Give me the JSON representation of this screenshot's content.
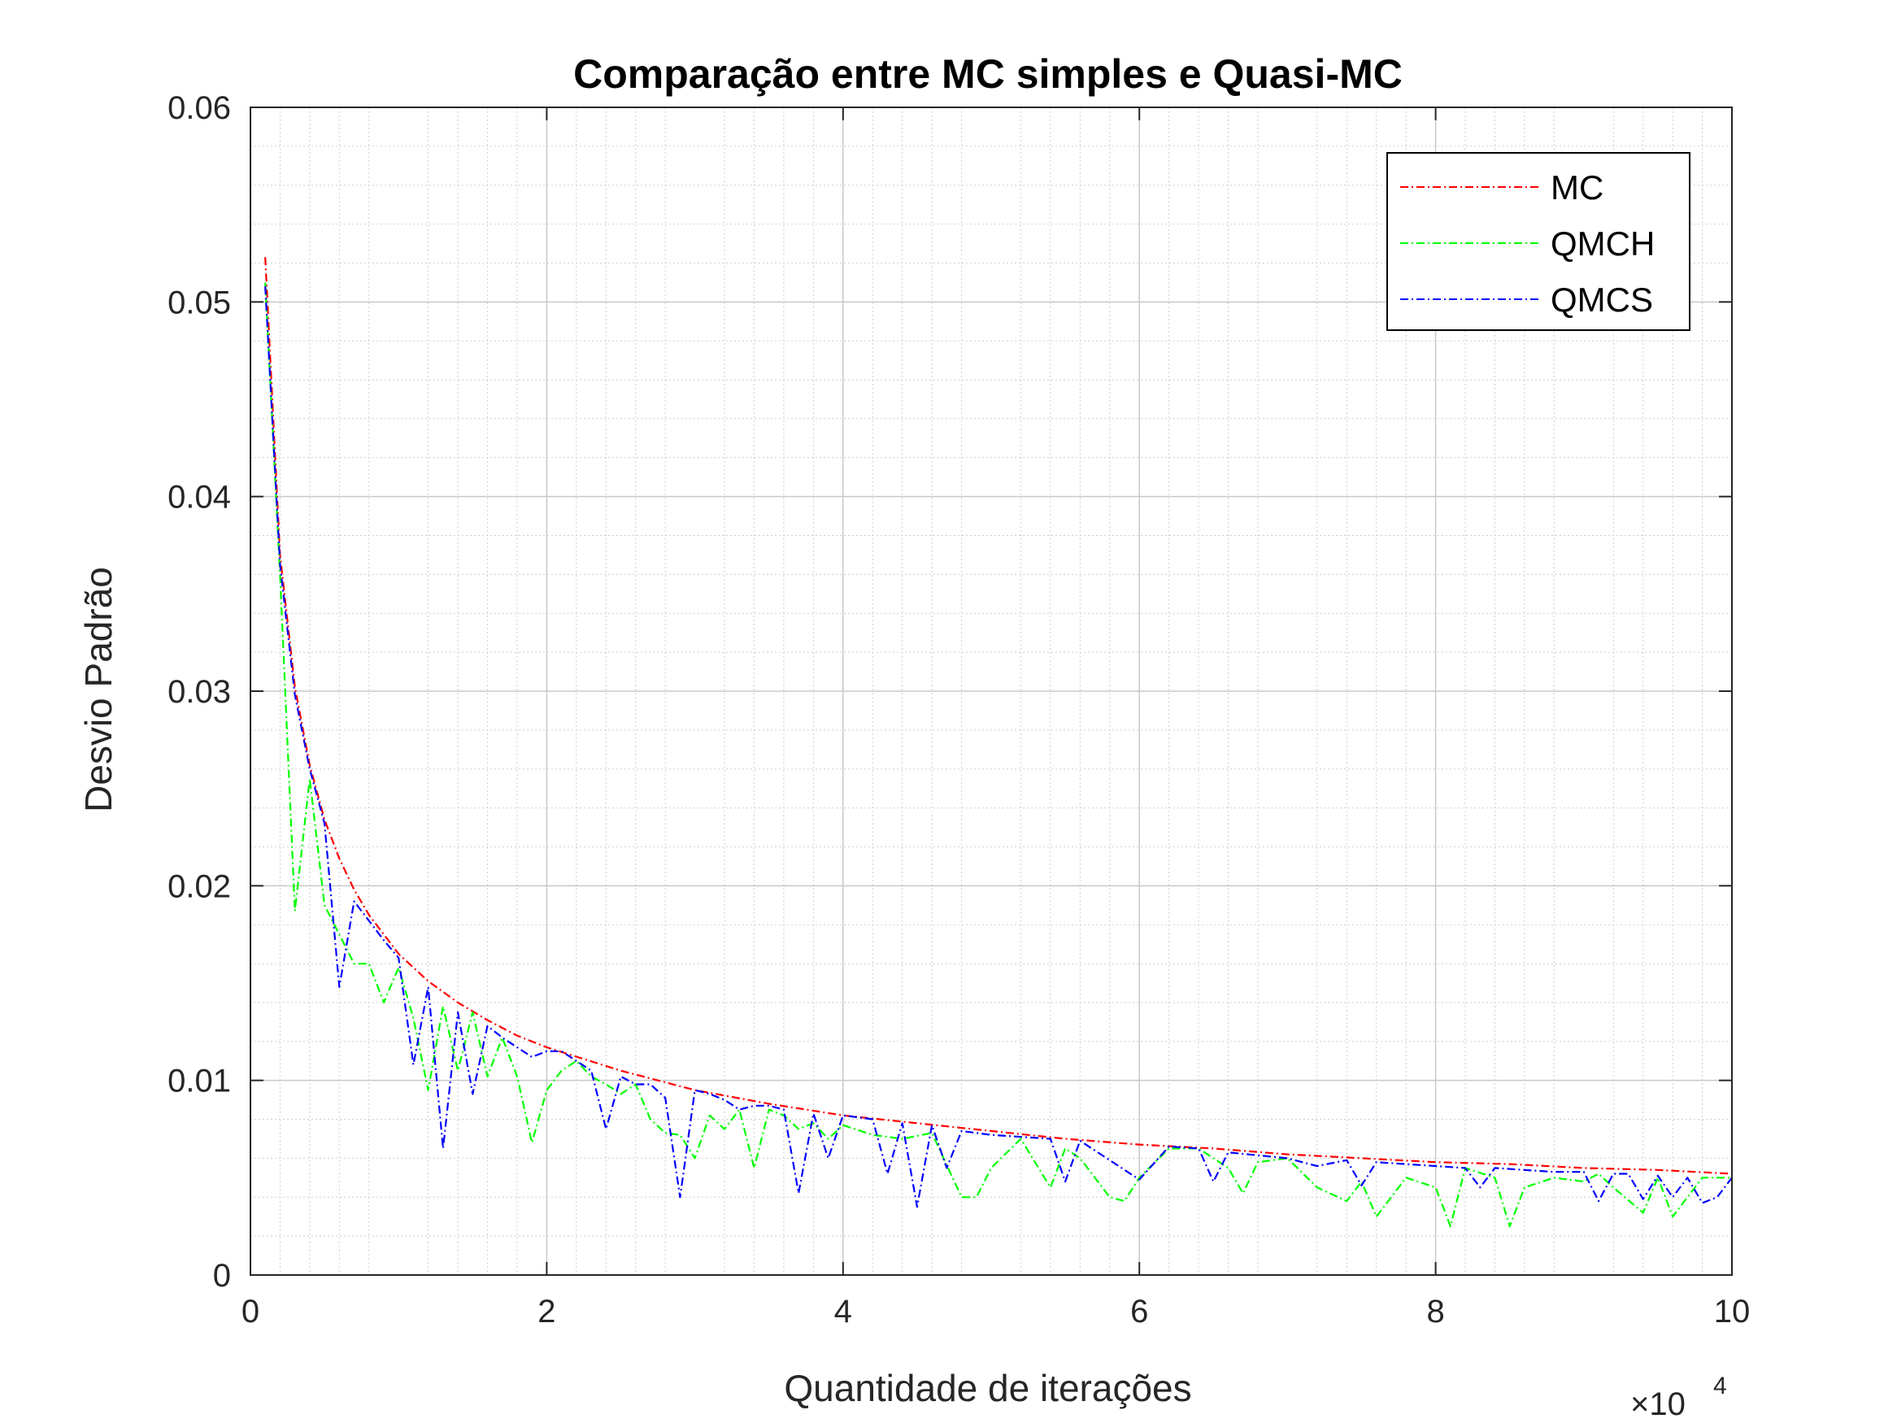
{
  "chart_data": {
    "type": "line",
    "title": "Comparação entre MC simples e Quasi-MC",
    "xlabel": "Quantidade de iterações",
    "ylabel": "Desvio Padrão",
    "x_exponent_label": "×10",
    "x_exponent_power": "4",
    "xlim": [
      0,
      10
    ],
    "ylim": [
      0,
      0.06
    ],
    "xticks": [
      "0",
      "2",
      "4",
      "6",
      "8",
      "10"
    ],
    "yticks": [
      "0",
      "0.01",
      "0.02",
      "0.03",
      "0.04",
      "0.05",
      "0.06"
    ],
    "grid": true,
    "minor_grid": true,
    "legend_position": "top-right",
    "series": [
      {
        "name": "MC",
        "color": "#ff0000",
        "x": [
          0.1,
          0.2,
          0.3,
          0.4,
          0.5,
          0.6,
          0.7,
          0.8,
          1.0,
          1.2,
          1.4,
          1.6,
          1.8,
          2.0,
          2.5,
          3.0,
          3.5,
          4.0,
          4.5,
          5.0,
          5.5,
          6.0,
          6.5,
          7.0,
          7.5,
          8.0,
          8.5,
          9.0,
          9.5,
          10.0
        ],
        "y": [
          0.0523,
          0.037,
          0.0302,
          0.0262,
          0.0234,
          0.0214,
          0.0198,
          0.0185,
          0.0165,
          0.0151,
          0.014,
          0.0131,
          0.0123,
          0.0117,
          0.0105,
          0.0095,
          0.0088,
          0.0082,
          0.0078,
          0.0074,
          0.007,
          0.0067,
          0.0065,
          0.0062,
          0.006,
          0.0058,
          0.0057,
          0.0055,
          0.0054,
          0.0052
        ]
      },
      {
        "name": "QMCH",
        "color": "#00ff00",
        "x": [
          0.1,
          0.2,
          0.3,
          0.4,
          0.5,
          0.6,
          0.7,
          0.8,
          0.9,
          1.0,
          1.1,
          1.2,
          1.3,
          1.4,
          1.5,
          1.6,
          1.7,
          1.8,
          1.9,
          2.0,
          2.1,
          2.2,
          2.3,
          2.4,
          2.5,
          2.6,
          2.7,
          2.8,
          2.9,
          3.0,
          3.1,
          3.2,
          3.3,
          3.4,
          3.5,
          3.6,
          3.7,
          3.8,
          3.9,
          4.0,
          4.2,
          4.4,
          4.6,
          4.8,
          4.9,
          5.0,
          5.2,
          5.4,
          5.5,
          5.6,
          5.8,
          5.9,
          6.0,
          6.2,
          6.4,
          6.6,
          6.7,
          6.8,
          7.0,
          7.2,
          7.4,
          7.5,
          7.6,
          7.8,
          8.0,
          8.1,
          8.2,
          8.4,
          8.5,
          8.6,
          8.8,
          9.0,
          9.1,
          9.2,
          9.4,
          9.5,
          9.6,
          9.8,
          10.0
        ],
        "y": [
          0.051,
          0.036,
          0.0187,
          0.0255,
          0.019,
          0.0175,
          0.016,
          0.016,
          0.014,
          0.0158,
          0.0132,
          0.0095,
          0.0138,
          0.0105,
          0.0135,
          0.0102,
          0.0122,
          0.0102,
          0.0068,
          0.0095,
          0.0105,
          0.011,
          0.0102,
          0.0098,
          0.0093,
          0.0098,
          0.008,
          0.0073,
          0.0072,
          0.006,
          0.0082,
          0.0075,
          0.0085,
          0.0055,
          0.0085,
          0.0082,
          0.0075,
          0.0078,
          0.007,
          0.0077,
          0.0072,
          0.007,
          0.0073,
          0.004,
          0.004,
          0.0055,
          0.007,
          0.0045,
          0.0065,
          0.006,
          0.004,
          0.0038,
          0.005,
          0.0065,
          0.0065,
          0.0055,
          0.0042,
          0.0058,
          0.006,
          0.0045,
          0.0038,
          0.0048,
          0.003,
          0.005,
          0.0045,
          0.0025,
          0.0055,
          0.005,
          0.0025,
          0.0045,
          0.005,
          0.0048,
          0.0052,
          0.0045,
          0.0032,
          0.005,
          0.003,
          0.005,
          0.005
        ]
      },
      {
        "name": "QMCS",
        "color": "#0000ff",
        "x": [
          0.1,
          0.2,
          0.3,
          0.4,
          0.5,
          0.6,
          0.7,
          0.8,
          0.9,
          1.0,
          1.1,
          1.2,
          1.3,
          1.4,
          1.5,
          1.6,
          1.7,
          1.8,
          1.9,
          2.0,
          2.1,
          2.2,
          2.3,
          2.4,
          2.5,
          2.6,
          2.7,
          2.8,
          2.9,
          3.0,
          3.1,
          3.2,
          3.3,
          3.4,
          3.5,
          3.6,
          3.7,
          3.8,
          3.9,
          4.0,
          4.2,
          4.3,
          4.4,
          4.5,
          4.6,
          4.7,
          4.8,
          5.0,
          5.4,
          5.5,
          5.6,
          6.0,
          6.2,
          6.4,
          6.5,
          6.6,
          7.0,
          7.2,
          7.4,
          7.5,
          7.6,
          7.8,
          8.0,
          8.2,
          8.3,
          8.4,
          8.6,
          8.8,
          9.0,
          9.1,
          9.2,
          9.3,
          9.4,
          9.5,
          9.6,
          9.7,
          9.8,
          9.9,
          10.0
        ],
        "y": [
          0.0508,
          0.0365,
          0.0298,
          0.026,
          0.0232,
          0.0148,
          0.0192,
          0.0182,
          0.0172,
          0.0163,
          0.0108,
          0.0148,
          0.0065,
          0.0135,
          0.0093,
          0.0128,
          0.0122,
          0.0117,
          0.0112,
          0.0115,
          0.0115,
          0.011,
          0.0105,
          0.0075,
          0.0102,
          0.0098,
          0.0098,
          0.0091,
          0.004,
          0.0095,
          0.0093,
          0.009,
          0.0085,
          0.0087,
          0.0087,
          0.0085,
          0.0042,
          0.0083,
          0.006,
          0.0082,
          0.008,
          0.0052,
          0.0078,
          0.0035,
          0.0077,
          0.0055,
          0.0074,
          0.0072,
          0.007,
          0.0048,
          0.0069,
          0.0049,
          0.0066,
          0.0065,
          0.0048,
          0.0063,
          0.006,
          0.0056,
          0.0059,
          0.0046,
          0.0058,
          0.0057,
          0.0056,
          0.0055,
          0.0045,
          0.0055,
          0.0054,
          0.0053,
          0.0053,
          0.0038,
          0.0052,
          0.0052,
          0.0039,
          0.0051,
          0.004,
          0.005,
          0.0037,
          0.004,
          0.005
        ]
      }
    ]
  }
}
